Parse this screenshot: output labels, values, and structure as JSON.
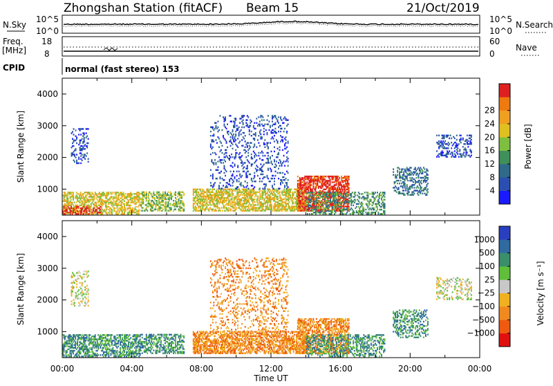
{
  "header": {
    "station": "Zhongshan Station (fitACF)",
    "beam": "Beam 15",
    "date": "21/Oct/2019"
  },
  "top_panels": {
    "nsky_label": "N.Sky",
    "nsky_ticks": [
      "10^5",
      "10^0"
    ],
    "nsearch_label": "N.Search",
    "nsearch_ticks": [
      "10^5",
      "10^0"
    ],
    "freq_label": "Freq.",
    "freq_unit": "[MHz]",
    "freq_ticks": [
      "18",
      "8"
    ],
    "nave_label": "Nave",
    "nave_ticks": [
      "60",
      "0"
    ],
    "cpid_label": "CPID",
    "cpid_text": "normal (fast stereo) 153"
  },
  "chart_data": [
    {
      "type": "heatmap",
      "panel": "power",
      "xlabel": "Time UT",
      "ylabel": "Slant Range [km]",
      "xlim_hours": [
        0,
        24
      ],
      "ylim_km": [
        180,
        4500
      ],
      "y_ticks": [
        "1000",
        "2000",
        "3000",
        "4000"
      ],
      "colorbar_label": "Power [dB]",
      "colorbar_ticks": [
        "4",
        "8",
        "12",
        "16",
        "20",
        "24",
        "28"
      ],
      "colorbar_colors": [
        "#1a1aff",
        "#2a4fb0",
        "#2f6a8a",
        "#3f8f5a",
        "#7fbf3f",
        "#e0c020",
        "#f0a020",
        "#ee7a10",
        "#e02020"
      ],
      "regions": [
        {
          "t0": 0.0,
          "t1": 4.5,
          "r0": 200,
          "r1": 900,
          "level": 5,
          "density": 0.55
        },
        {
          "t0": 0.0,
          "t1": 2.2,
          "r0": 200,
          "r1": 450,
          "level": 8,
          "density": 0.45
        },
        {
          "t0": 0.5,
          "t1": 1.5,
          "r0": 1800,
          "r1": 2900,
          "level": 1,
          "density": 0.25
        },
        {
          "t0": 4.5,
          "t1": 7.0,
          "r0": 300,
          "r1": 900,
          "level": 4,
          "density": 0.5
        },
        {
          "t0": 7.5,
          "t1": 14.0,
          "r0": 300,
          "r1": 1000,
          "level": 5,
          "density": 0.6
        },
        {
          "t0": 8.5,
          "t1": 13.0,
          "r0": 1000,
          "r1": 3300,
          "level": 1,
          "density": 0.18
        },
        {
          "t0": 13.5,
          "t1": 16.5,
          "r0": 300,
          "r1": 1400,
          "level": 8,
          "density": 0.65
        },
        {
          "t0": 14.0,
          "t1": 18.5,
          "r0": 200,
          "r1": 900,
          "level": 3,
          "density": 0.4
        },
        {
          "t0": 19.0,
          "t1": 21.0,
          "r0": 800,
          "r1": 1700,
          "level": 2,
          "density": 0.35
        },
        {
          "t0": 21.5,
          "t1": 23.5,
          "r0": 2000,
          "r1": 2700,
          "level": 1,
          "density": 0.3
        }
      ]
    },
    {
      "type": "heatmap",
      "panel": "velocity",
      "xlabel": "Time UT",
      "ylabel": "Slant Range [km]",
      "xlim_hours": [
        0,
        24
      ],
      "ylim_km": [
        180,
        4500
      ],
      "x_ticks": [
        "00:00",
        "04:00",
        "08:00",
        "12:00",
        "16:00",
        "20:00",
        "00:00"
      ],
      "y_ticks": [
        "1000",
        "2000",
        "3000",
        "4000"
      ],
      "colorbar_label": "Velocity [m s⁻¹]",
      "colorbar_ticks": [
        "1000",
        "500",
        "100",
        "25",
        "−25",
        "−100",
        "−500",
        "−1000"
      ],
      "colorbar_colors": [
        "#2a3fc0",
        "#2f6aa0",
        "#3a8f6a",
        "#5fbf3a",
        "#c8c8c8",
        "#f0b020",
        "#f08a20",
        "#ee5a10",
        "#e01010"
      ],
      "regions": [
        {
          "t0": 0.0,
          "t1": 4.5,
          "r0": 200,
          "r1": 900,
          "level": 2,
          "density": 0.55
        },
        {
          "t0": 0.5,
          "t1": 1.5,
          "r0": 1800,
          "r1": 2900,
          "level": 4,
          "density": 0.25
        },
        {
          "t0": 4.5,
          "t1": 7.0,
          "r0": 300,
          "r1": 900,
          "level": 2,
          "density": 0.5
        },
        {
          "t0": 7.5,
          "t1": 14.0,
          "r0": 300,
          "r1": 1000,
          "level": 6,
          "density": 0.6
        },
        {
          "t0": 8.5,
          "t1": 13.0,
          "r0": 1000,
          "r1": 3300,
          "level": 6,
          "density": 0.18
        },
        {
          "t0": 13.5,
          "t1": 16.5,
          "r0": 300,
          "r1": 1400,
          "level": 6,
          "density": 0.55
        },
        {
          "t0": 14.0,
          "t1": 18.5,
          "r0": 200,
          "r1": 900,
          "level": 2,
          "density": 0.4
        },
        {
          "t0": 19.0,
          "t1": 21.0,
          "r0": 800,
          "r1": 1700,
          "level": 2,
          "density": 0.35
        },
        {
          "t0": 21.5,
          "t1": 23.5,
          "r0": 2000,
          "r1": 2700,
          "level": 4,
          "density": 0.3
        }
      ]
    }
  ]
}
